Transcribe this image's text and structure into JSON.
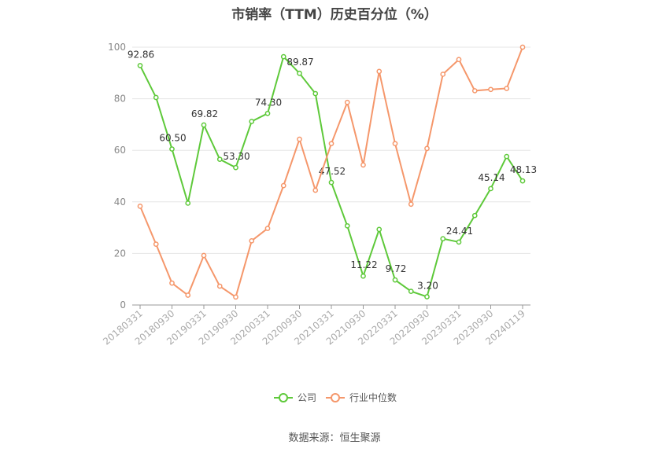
{
  "chart_data": {
    "type": "line",
    "title": "市销率（TTM）历史百分位（%）",
    "source": "数据来源：恒生聚源",
    "ylim": [
      0,
      100
    ],
    "yticks": [
      0,
      20,
      40,
      60,
      80,
      100
    ],
    "grid": true,
    "legend_position": "bottom",
    "x_tick_labels": [
      "20180331",
      "20180930",
      "20190331",
      "20190930",
      "20200331",
      "20200930",
      "20210331",
      "20210930",
      "20220331",
      "20220930",
      "20230331",
      "20230930",
      "20240119"
    ],
    "x": [
      "20180331",
      "20180630",
      "20180930",
      "20181231",
      "20190331",
      "20190630",
      "20190930",
      "20191231",
      "20200331",
      "20200630",
      "20200930",
      "20201231",
      "20210331",
      "20210630",
      "20210930",
      "20211231",
      "20220331",
      "20220630",
      "20220930",
      "20221231",
      "20230331",
      "20230630",
      "20230930",
      "20231231",
      "20240119"
    ],
    "series": [
      {
        "name": "公司",
        "color": "#5ec93a",
        "values": [
          92.86,
          80.5,
          60.5,
          39.5,
          69.82,
          56.5,
          53.3,
          71.2,
          74.3,
          96.3,
          89.87,
          82.0,
          47.52,
          30.7,
          11.22,
          29.3,
          9.72,
          5.3,
          3.2,
          25.7,
          24.41,
          34.7,
          45.14,
          57.6,
          48.13
        ],
        "labels": {
          "0": "92.86",
          "2": "60.50",
          "4": "69.82",
          "6": "53.30",
          "8": "74.30",
          "10": "89.87",
          "12": "47.52",
          "14": "11.22",
          "16": "9.72",
          "18": "3.20",
          "20": "24.41",
          "22": "45.14",
          "24": "48.13"
        }
      },
      {
        "name": "行业中位数",
        "color": "#f5976b",
        "values": [
          38.3,
          23.6,
          8.5,
          3.8,
          19.2,
          7.3,
          3.1,
          24.9,
          29.7,
          46.3,
          64.3,
          44.5,
          62.6,
          78.6,
          54.3,
          90.6,
          62.6,
          39.1,
          60.7,
          89.5,
          95.2,
          83.1,
          83.6,
          84.0,
          100.0
        ]
      }
    ]
  }
}
